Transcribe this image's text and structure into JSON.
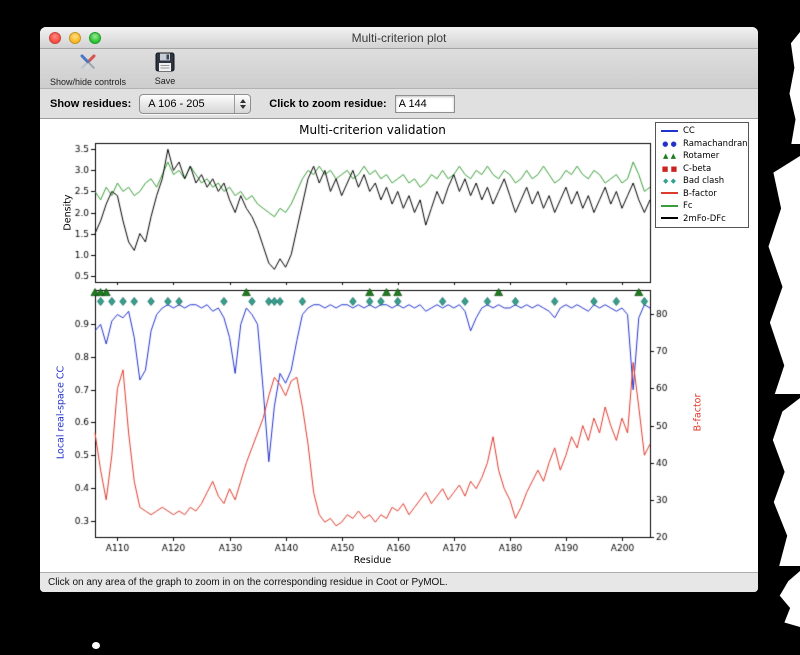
{
  "window": {
    "title": "Multi-criterion plot"
  },
  "toolbar": {
    "show_hide_label": "Show/hide controls",
    "save_label": "Save"
  },
  "controls": {
    "show_residues_label": "Show residues:",
    "residue_range_value": "A 106 - 205",
    "zoom_label": "Click to zoom residue:",
    "zoom_value": "A 144"
  },
  "status": {
    "text": "Click on any area of the graph to zoom in on the corresponding residue in Coot or PyMOL."
  },
  "chart_data": {
    "type": "line",
    "title": "Multi-criterion validation",
    "xlabel": "Residue",
    "x_start": 106,
    "x_end": 205,
    "x_ticks": [
      110,
      120,
      130,
      140,
      150,
      160,
      170,
      180,
      190,
      200
    ],
    "x_tick_labels": [
      "A110",
      "A120",
      "A130",
      "A140",
      "A150",
      "A160",
      "A170",
      "A180",
      "A190",
      "A200"
    ],
    "top_plot": {
      "ylabel": "Density",
      "ylim": [
        0.35,
        3.65
      ],
      "yticks": [
        0.5,
        1.0,
        1.5,
        2.0,
        2.5,
        3.0,
        3.5
      ],
      "series": [
        {
          "name": "Fc",
          "color": "#3a9d3a",
          "values": [
            2.5,
            2.3,
            2.6,
            2.4,
            2.7,
            2.5,
            2.6,
            2.4,
            2.5,
            2.7,
            2.8,
            2.6,
            2.9,
            3.2,
            2.9,
            3.0,
            2.8,
            3.1,
            2.9,
            2.7,
            2.8,
            2.6,
            2.7,
            2.5,
            2.6,
            2.4,
            2.5,
            2.3,
            2.4,
            2.2,
            2.1,
            2.0,
            1.9,
            2.1,
            2.0,
            2.2,
            2.5,
            2.8,
            3.0,
            2.9,
            3.1,
            2.9,
            3.0,
            2.8,
            2.9,
            3.0,
            2.8,
            2.9,
            3.1,
            2.9,
            3.0,
            2.8,
            2.9,
            2.7,
            2.8,
            2.9,
            2.7,
            2.8,
            2.6,
            2.7,
            2.9,
            2.8,
            3.0,
            2.8,
            2.9,
            3.1,
            2.9,
            2.8,
            3.0,
            2.9,
            3.1,
            2.9,
            2.8,
            3.0,
            2.9,
            2.7,
            2.8,
            3.0,
            2.8,
            2.9,
            3.1,
            2.9,
            2.7,
            2.8,
            3.0,
            2.9,
            3.1,
            2.9,
            2.8,
            3.0,
            2.9,
            2.7,
            2.8,
            2.9,
            2.7,
            2.8,
            3.2,
            2.9,
            2.5,
            2.6
          ]
        },
        {
          "name": "2mFo-DFc",
          "color": "#000000",
          "values": [
            1.5,
            1.8,
            2.2,
            2.5,
            2.4,
            1.8,
            1.3,
            1.1,
            1.5,
            1.3,
            1.9,
            2.4,
            2.8,
            3.5,
            3.0,
            3.2,
            2.8,
            3.1,
            2.7,
            2.9,
            2.6,
            2.8,
            2.5,
            2.7,
            2.3,
            2.0,
            2.4,
            2.1,
            1.9,
            1.6,
            1.2,
            0.8,
            0.65,
            0.9,
            0.7,
            1.0,
            1.6,
            2.2,
            2.8,
            3.1,
            2.7,
            3.0,
            2.5,
            2.8,
            2.4,
            2.7,
            3.0,
            2.6,
            2.9,
            2.5,
            2.7,
            2.3,
            2.6,
            2.2,
            2.5,
            2.1,
            2.4,
            2.0,
            2.3,
            1.7,
            2.1,
            2.5,
            2.2,
            2.6,
            2.9,
            2.5,
            2.8,
            2.4,
            2.7,
            2.3,
            2.6,
            2.2,
            2.5,
            2.8,
            2.4,
            2.0,
            2.3,
            2.6,
            2.2,
            2.5,
            2.1,
            2.4,
            2.0,
            2.3,
            2.6,
            2.2,
            2.5,
            2.1,
            2.4,
            2.0,
            2.3,
            2.6,
            2.2,
            2.5,
            2.1,
            2.4,
            2.7,
            2.3,
            2.0,
            2.3
          ]
        }
      ]
    },
    "bottom_plot": {
      "ylabel_left": "Local real-space CC",
      "ylabel_left_color": "#2233cc",
      "ylabel_right": "B-factor",
      "ylabel_right_color": "#dd3b2d",
      "ylim_left": [
        0.25,
        1.005
      ],
      "yticks_left": [
        0.3,
        0.4,
        0.5,
        0.6,
        0.7,
        0.8,
        0.9
      ],
      "ylim_right": [
        20,
        86.5
      ],
      "yticks_right": [
        20,
        30,
        40,
        50,
        60,
        70,
        80
      ],
      "series": [
        {
          "name": "CC",
          "axis": "left",
          "color": "#2233cc",
          "values": [
            0.88,
            0.9,
            0.84,
            0.91,
            0.93,
            0.92,
            0.94,
            0.86,
            0.73,
            0.76,
            0.88,
            0.93,
            0.95,
            0.96,
            0.95,
            0.96,
            0.95,
            0.96,
            0.96,
            0.95,
            0.96,
            0.94,
            0.95,
            0.92,
            0.86,
            0.75,
            0.9,
            0.95,
            0.93,
            0.9,
            0.7,
            0.48,
            0.65,
            0.75,
            0.72,
            0.76,
            0.85,
            0.93,
            0.95,
            0.96,
            0.96,
            0.95,
            0.96,
            0.95,
            0.96,
            0.96,
            0.95,
            0.96,
            0.95,
            0.96,
            0.95,
            0.96,
            0.96,
            0.95,
            0.96,
            0.95,
            0.96,
            0.95,
            0.96,
            0.94,
            0.95,
            0.96,
            0.95,
            0.96,
            0.95,
            0.96,
            0.94,
            0.88,
            0.92,
            0.95,
            0.96,
            0.95,
            0.96,
            0.95,
            0.95,
            0.96,
            0.95,
            0.96,
            0.95,
            0.96,
            0.95,
            0.94,
            0.92,
            0.95,
            0.96,
            0.95,
            0.96,
            0.95,
            0.94,
            0.96,
            0.95,
            0.96,
            0.95,
            0.94,
            0.95,
            0.93,
            0.7,
            0.92,
            0.96,
            0.95
          ]
        },
        {
          "name": "B-factor",
          "axis": "right",
          "color": "#dd3b2d",
          "values": [
            48,
            38,
            30,
            42,
            60,
            65,
            48,
            35,
            28,
            27,
            26,
            27,
            28,
            27,
            26,
            27,
            26,
            28,
            27,
            29,
            32,
            35,
            31,
            29,
            33,
            30,
            35,
            40,
            44,
            48,
            52,
            58,
            63,
            61,
            58,
            62,
            63,
            55,
            45,
            32,
            26,
            24,
            25,
            23,
            24,
            26,
            25,
            27,
            25,
            26,
            24,
            26,
            25,
            28,
            27,
            29,
            26,
            28,
            30,
            32,
            29,
            31,
            33,
            30,
            32,
            34,
            31,
            35,
            33,
            36,
            40,
            47,
            38,
            33,
            30,
            25,
            28,
            32,
            35,
            38,
            35,
            40,
            44,
            38,
            42,
            47,
            44,
            50,
            46,
            52,
            48,
            55,
            50,
            46,
            52,
            48,
            67,
            55,
            42,
            45
          ]
        }
      ],
      "markers": [
        {
          "name": "Rotamer",
          "shape": "triangle",
          "color": "#1e7d1e",
          "edge": "#0e4d0e",
          "y": 0.997,
          "residues": [
            106,
            107,
            108,
            133,
            155,
            158,
            160,
            178,
            203
          ]
        },
        {
          "name": "Bad clash",
          "shape": "diamond",
          "color": "#35a08e",
          "edge": "#1d6b5e",
          "y": 0.97,
          "residues": [
            107,
            109,
            111,
            113,
            116,
            119,
            121,
            129,
            134,
            137,
            138,
            139,
            143,
            152,
            155,
            157,
            160,
            168,
            172,
            176,
            181,
            188,
            195,
            199,
            204
          ]
        },
        {
          "name": "Ramachandran",
          "shape": "circle",
          "color": "#2233cc",
          "edge": "#111a80",
          "y": 0.997,
          "residues": []
        },
        {
          "name": "C-beta",
          "shape": "square",
          "color": "#cc2222",
          "edge": "#7a1212",
          "y": 0.997,
          "residues": []
        }
      ]
    },
    "legend": [
      {
        "label": "CC",
        "type": "line",
        "color": "#2233cc"
      },
      {
        "label": "Ramachandran",
        "type": "marker",
        "shape": "circle",
        "color": "#2233cc"
      },
      {
        "label": "Rotamer",
        "type": "marker",
        "shape": "triangle",
        "color": "#1e7d1e"
      },
      {
        "label": "C-beta",
        "type": "marker",
        "shape": "square",
        "color": "#cc2222"
      },
      {
        "label": "Bad clash",
        "type": "marker",
        "shape": "diamond",
        "color": "#35a08e"
      },
      {
        "label": "B-factor",
        "type": "line",
        "color": "#dd3b2d"
      },
      {
        "label": "Fc",
        "type": "line",
        "color": "#3a9d3a"
      },
      {
        "label": "2mFo-DFc",
        "type": "line",
        "color": "#000000"
      }
    ]
  }
}
